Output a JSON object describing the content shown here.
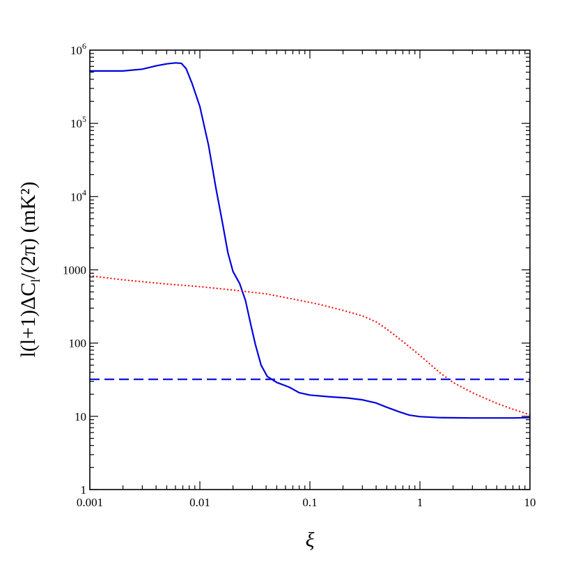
{
  "chart_data": {
    "type": "line",
    "title": "",
    "xlabel": "ξ",
    "ylabel": "l(l+1)ΔC_l/(2π)  (mK²)",
    "xscale": "log",
    "yscale": "log",
    "xlim": [
      0.001,
      10
    ],
    "ylim": [
      1,
      1000000
    ],
    "grid": false,
    "legend": "none",
    "x_ticks": [
      {
        "value": 0.001,
        "label": "0.001"
      },
      {
        "value": 0.01,
        "label": "0.01"
      },
      {
        "value": 0.1,
        "label": "0.1"
      },
      {
        "value": 1,
        "label": "1"
      },
      {
        "value": 10,
        "label": "10"
      }
    ],
    "y_ticks": [
      {
        "value": 1,
        "base": "1",
        "exp": ""
      },
      {
        "value": 10,
        "base": "10",
        "exp": ""
      },
      {
        "value": 100,
        "base": "100",
        "exp": ""
      },
      {
        "value": 1000,
        "base": "1000",
        "exp": ""
      },
      {
        "value": 10000,
        "base": "10",
        "exp": "4"
      },
      {
        "value": 100000,
        "base": "10",
        "exp": "5"
      },
      {
        "value": 1000000,
        "base": "10",
        "exp": "6"
      }
    ],
    "series": [
      {
        "style": "solid",
        "color": "#0000dd",
        "points": [
          [
            0.001,
            520000
          ],
          [
            0.002,
            520000
          ],
          [
            0.003,
            550000
          ],
          [
            0.004,
            610000
          ],
          [
            0.005,
            650000
          ],
          [
            0.006,
            670000
          ],
          [
            0.0068,
            660000
          ],
          [
            0.0075,
            560000
          ],
          [
            0.0085,
            350000
          ],
          [
            0.01,
            170000
          ],
          [
            0.012,
            50000
          ],
          [
            0.014,
            13000
          ],
          [
            0.016,
            4500
          ],
          [
            0.018,
            1700
          ],
          [
            0.02,
            950
          ],
          [
            0.023,
            650
          ],
          [
            0.026,
            380
          ],
          [
            0.029,
            180
          ],
          [
            0.032,
            95
          ],
          [
            0.036,
            50
          ],
          [
            0.041,
            35
          ],
          [
            0.05,
            29
          ],
          [
            0.065,
            25
          ],
          [
            0.08,
            21
          ],
          [
            0.1,
            19.5
          ],
          [
            0.15,
            18.5
          ],
          [
            0.22,
            17.8
          ],
          [
            0.3,
            16.8
          ],
          [
            0.4,
            15.2
          ],
          [
            0.5,
            13.3
          ],
          [
            0.65,
            11.5
          ],
          [
            0.8,
            10.4
          ],
          [
            1,
            9.9
          ],
          [
            1.5,
            9.6
          ],
          [
            3,
            9.5
          ],
          [
            5,
            9.5
          ],
          [
            7,
            9.5
          ],
          [
            10,
            9.6
          ]
        ]
      },
      {
        "style": "dotted",
        "color": "#ff0000",
        "points": [
          [
            0.001,
            830
          ],
          [
            0.002,
            730
          ],
          [
            0.005,
            640
          ],
          [
            0.01,
            590
          ],
          [
            0.02,
            530
          ],
          [
            0.04,
            470
          ],
          [
            0.07,
            400
          ],
          [
            0.12,
            340
          ],
          [
            0.2,
            280
          ],
          [
            0.3,
            235
          ],
          [
            0.4,
            195
          ],
          [
            0.5,
            155
          ],
          [
            0.7,
            105
          ],
          [
            1,
            68
          ],
          [
            1.5,
            40
          ],
          [
            2,
            29
          ],
          [
            3,
            21
          ],
          [
            5,
            15
          ],
          [
            7,
            12.5
          ],
          [
            10,
            10.5
          ]
        ]
      },
      {
        "style": "dashed",
        "color": "#0000dd",
        "points": [
          [
            0.001,
            32
          ],
          [
            10,
            32
          ]
        ]
      }
    ]
  }
}
